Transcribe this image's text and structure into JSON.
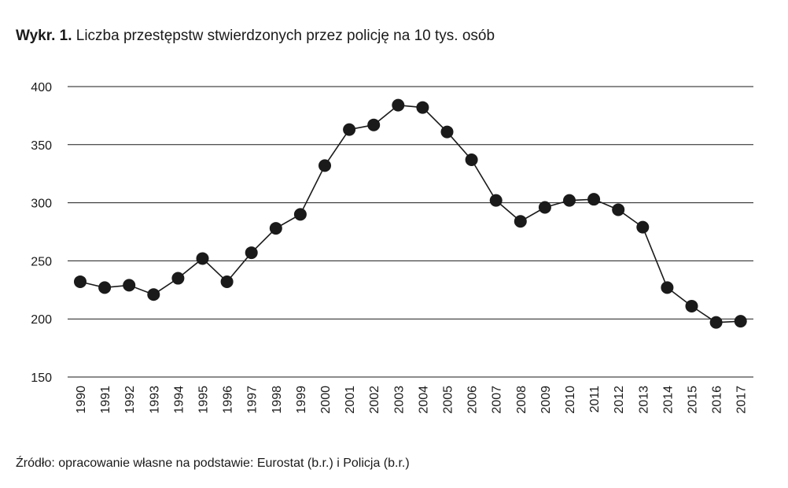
{
  "figure": {
    "title_prefix": "Wykr. 1.",
    "title": "Liczba przestępstw stwierdzonych przez policję na 10 tys. osób",
    "source": "Źródło: opracowanie własne na podstawie: Eurostat (b.r.) i Policja (b.r.)"
  },
  "chart_data": {
    "type": "line",
    "title": "Liczba przestępstw stwierdzonych przez policję na 10 tys. osób",
    "xlabel": "",
    "ylabel": "",
    "categories": [
      "1990",
      "1991",
      "1992",
      "1993",
      "1994",
      "1995",
      "1996",
      "1997",
      "1998",
      "1999",
      "2000",
      "2001",
      "2002",
      "2003",
      "2004",
      "2005",
      "2006",
      "2007",
      "2008",
      "2009",
      "2010",
      "2011",
      "2012",
      "2013",
      "2014",
      "2015",
      "2016",
      "2017"
    ],
    "series": [
      {
        "values": [
          232,
          227,
          229,
          221,
          235,
          252,
          232,
          257,
          278,
          290,
          332,
          363,
          367,
          384,
          382,
          361,
          337,
          302,
          284,
          296,
          302,
          303,
          294,
          279,
          227,
          211,
          197,
          198
        ]
      }
    ],
    "ylim": [
      150,
      400
    ],
    "yticks": [
      150,
      200,
      250,
      300,
      350,
      400
    ],
    "grid": "horizontal",
    "line_color": "#1a1a1a",
    "marker_color": "#1a1a1a",
    "marker": "filled-circle",
    "legend": "none"
  }
}
